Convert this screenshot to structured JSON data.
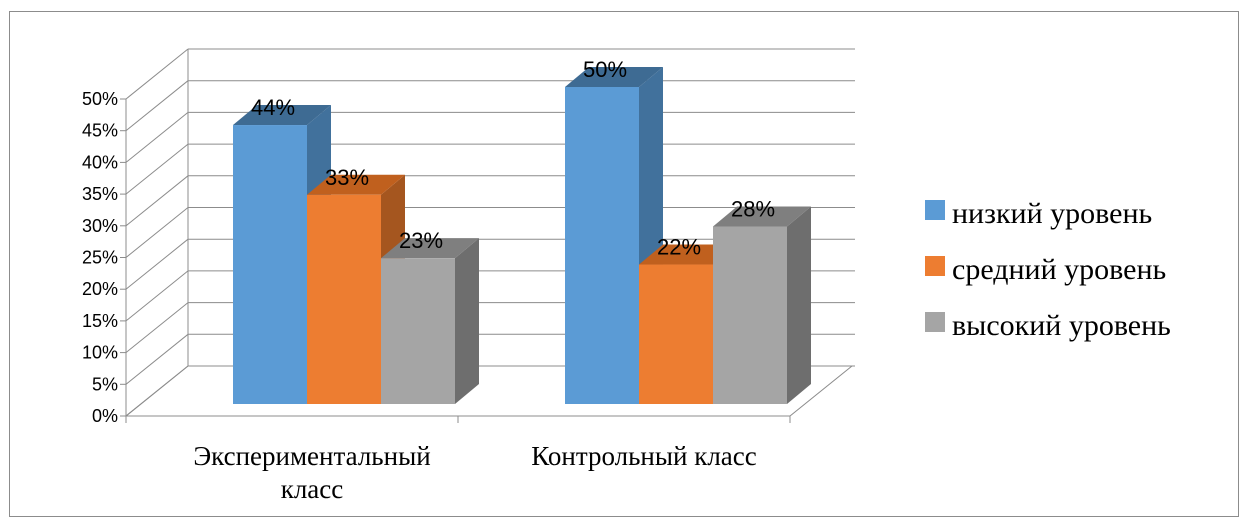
{
  "chart_data": {
    "type": "bar",
    "three_d": true,
    "categories": [
      "Экспериментальный класс",
      "Контрольный класс"
    ],
    "series": [
      {
        "name": "низкий уровень",
        "values": [
          44,
          50
        ],
        "color": "#5b9bd5",
        "side": "#41719c",
        "top": "#3e6b93"
      },
      {
        "name": "средний уровень",
        "values": [
          33,
          22
        ],
        "color": "#ed7d31",
        "side": "#a5561f",
        "top": "#c0601e"
      },
      {
        "name": "высокий уровень",
        "values": [
          23,
          28
        ],
        "color": "#a5a5a5",
        "side": "#6e6e6e",
        "top": "#7f7f7f"
      }
    ],
    "data_labels": [
      "44%",
      "50%",
      "33%",
      "22%",
      "23%",
      "28%"
    ],
    "yticks": [
      "0%",
      "5%",
      "10%",
      "15%",
      "20%",
      "25%",
      "30%",
      "35%",
      "40%",
      "45%",
      "50%"
    ],
    "ylim": [
      0,
      50
    ],
    "grid": true,
    "legend_position": "right"
  }
}
